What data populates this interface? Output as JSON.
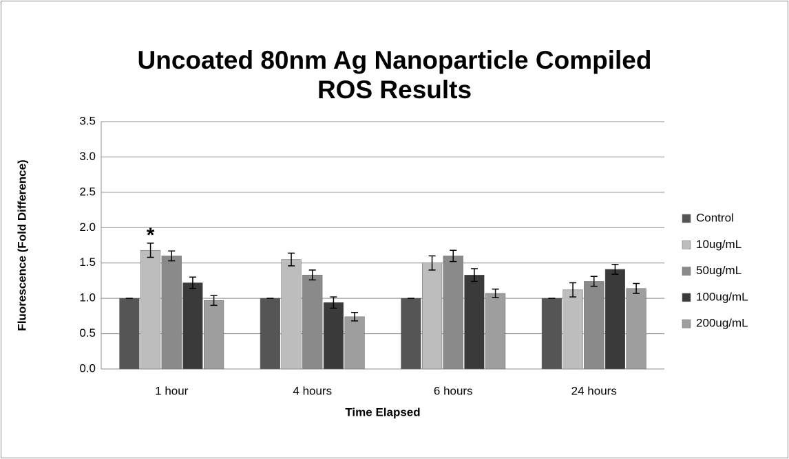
{
  "chart_data": {
    "type": "bar",
    "title": "Uncoated 80nm Ag Nanoparticle Compiled ROS Results",
    "xlabel": "Time Elapsed",
    "ylabel": "Fluorescence (Fold Difference)",
    "categories": [
      "1 hour",
      "4 hours",
      "6 hours",
      "24 hours"
    ],
    "series": [
      {
        "name": "Control",
        "color": "#555555",
        "values": [
          1.0,
          1.0,
          1.0,
          1.0
        ],
        "errors": [
          0,
          0,
          0,
          0
        ]
      },
      {
        "name": "10ug/mL",
        "color": "#bdbdbd",
        "values": [
          1.68,
          1.55,
          1.5,
          1.12
        ],
        "errors": [
          0.1,
          0.09,
          0.1,
          0.1
        ]
      },
      {
        "name": "50ug/mL",
        "color": "#8a8a8a",
        "values": [
          1.6,
          1.33,
          1.6,
          1.24
        ],
        "errors": [
          0.07,
          0.07,
          0.08,
          0.07
        ]
      },
      {
        "name": "100ug/mL",
        "color": "#3a3a3a",
        "values": [
          1.22,
          0.94,
          1.33,
          1.41
        ],
        "errors": [
          0.08,
          0.08,
          0.09,
          0.07
        ]
      },
      {
        "name": "200ug/mL",
        "color": "#9e9e9e",
        "values": [
          0.97,
          0.74,
          1.07,
          1.14
        ],
        "errors": [
          0.07,
          0.06,
          0.06,
          0.07
        ]
      }
    ],
    "annotations": [
      {
        "text": "*",
        "category": 0,
        "series": 1
      }
    ],
    "ylim": [
      0,
      3.5
    ],
    "yticks": [
      {
        "value": 0,
        "label": "0.0"
      },
      0.5,
      {
        "value": 1,
        "label": "1.0"
      },
      1.5,
      {
        "value": 2,
        "label": "2.0"
      },
      2.5,
      {
        "value": 3,
        "label": "3.0"
      },
      3.5
    ],
    "grid": true,
    "legend": "right"
  }
}
